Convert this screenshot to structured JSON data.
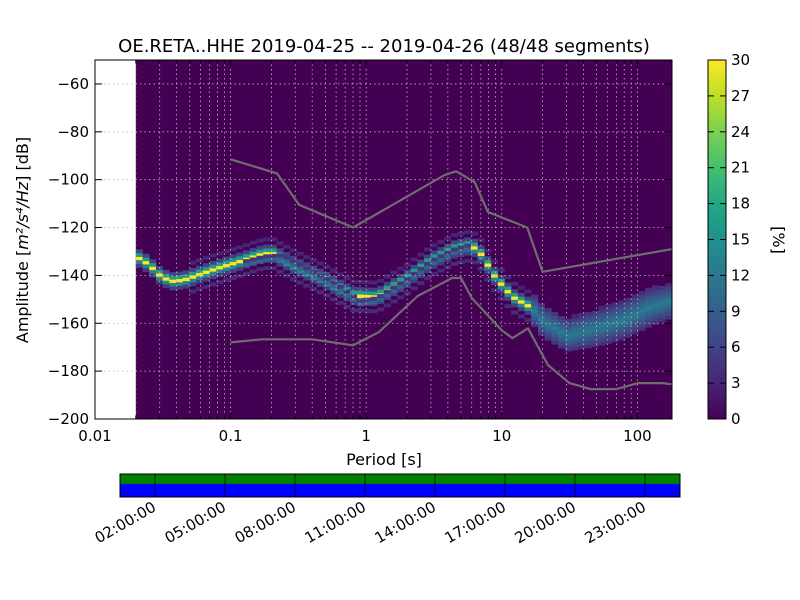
{
  "chart_data": {
    "type": "heatmap",
    "title": "OE.RETA..HHE   2019-04-25 -- 2019-04-26  (48/48 segments)",
    "xlabel": "Period [s]",
    "ylabel_prefix": "Amplitude [",
    "ylabel_math": "m²/s⁴/Hz",
    "ylabel_suffix": "] [dB]",
    "xscale": "log",
    "xlim": [
      0.01,
      180
    ],
    "ylim": [
      -200,
      -50
    ],
    "x_ticks": [
      {
        "value": 0.01,
        "label": "0.01"
      },
      {
        "value": 0.1,
        "label": "0.1"
      },
      {
        "value": 1,
        "label": "1"
      },
      {
        "value": 10,
        "label": "10"
      },
      {
        "value": 100,
        "label": "100"
      }
    ],
    "y_ticks": [
      {
        "value": -60,
        "label": "−60"
      },
      {
        "value": -80,
        "label": "−80"
      },
      {
        "value": -100,
        "label": "−100"
      },
      {
        "value": -120,
        "label": "−120"
      },
      {
        "value": -140,
        "label": "−140"
      },
      {
        "value": -160,
        "label": "−160"
      },
      {
        "value": -180,
        "label": "−180"
      },
      {
        "value": -200,
        "label": "−200"
      }
    ],
    "grid": true,
    "data_start_period": 0.02,
    "colorbar": {
      "label": "[%]",
      "range": [
        0,
        30
      ],
      "colormap": "viridis",
      "ticks": [
        "30",
        "27",
        "24",
        "21",
        "18",
        "15",
        "12",
        "9",
        "6",
        "3",
        "0"
      ],
      "tick_values": [
        30,
        27,
        24,
        21,
        18,
        15,
        12,
        9,
        6,
        3,
        0
      ]
    },
    "noise_model_high": [
      [
        0.1,
        -91.5
      ],
      [
        0.22,
        -97.4
      ],
      [
        0.32,
        -110.5
      ],
      [
        0.8,
        -120
      ],
      [
        3.8,
        -98
      ],
      [
        4.6,
        -96.5
      ],
      [
        6.3,
        -101
      ],
      [
        7.9,
        -113.5
      ],
      [
        15.4,
        -120
      ],
      [
        20,
        -138.5
      ],
      [
        180,
        -129
      ]
    ],
    "noise_model_low": [
      [
        0.1,
        -168
      ],
      [
        0.17,
        -166.7
      ],
      [
        0.4,
        -166.7
      ],
      [
        0.8,
        -169.2
      ],
      [
        1.24,
        -163.7
      ],
      [
        2.4,
        -148.6
      ],
      [
        4.3,
        -141.1
      ],
      [
        5.0,
        -141.1
      ],
      [
        6.0,
        -149.4
      ],
      [
        10,
        -163
      ],
      [
        12,
        -166.2
      ],
      [
        15.6,
        -162.1
      ],
      [
        21.9,
        -177.5
      ],
      [
        31.6,
        -185
      ],
      [
        45,
        -187.5
      ],
      [
        70,
        -187.5
      ],
      [
        101,
        -185
      ],
      [
        154,
        -185
      ],
      [
        180,
        -185.5
      ]
    ],
    "mode_curve": [
      [
        0.02,
        -132
      ],
      [
        0.025,
        -135.5
      ],
      [
        0.03,
        -140
      ],
      [
        0.036,
        -142.5
      ],
      [
        0.045,
        -142
      ],
      [
        0.06,
        -139.5
      ],
      [
        0.08,
        -137
      ],
      [
        0.12,
        -134
      ],
      [
        0.16,
        -131.5
      ],
      [
        0.2,
        -130.5
      ],
      [
        0.3,
        -136
      ],
      [
        0.5,
        -142
      ],
      [
        0.8,
        -148.5
      ],
      [
        1.2,
        -149
      ],
      [
        2,
        -141.5
      ],
      [
        3,
        -134
      ],
      [
        4.5,
        -129
      ],
      [
        6,
        -127.5
      ],
      [
        7,
        -131
      ],
      [
        9,
        -141
      ],
      [
        12,
        -149
      ],
      [
        16,
        -153
      ],
      [
        20,
        -157
      ]
    ],
    "high_noise_branch": [
      [
        0.12,
        -136
      ],
      [
        0.18,
        -133.5
      ],
      [
        0.24,
        -133
      ],
      [
        0.35,
        -138
      ],
      [
        0.6,
        -145
      ],
      [
        0.9,
        -152
      ],
      [
        1.2,
        -151
      ],
      [
        2,
        -143
      ],
      [
        3,
        -135.5
      ],
      [
        4.5,
        -130.5
      ],
      [
        6,
        -128.5
      ]
    ],
    "spread_region": [
      [
        16,
        -150
      ],
      [
        20,
        -157
      ],
      [
        30,
        -163
      ],
      [
        50,
        -159
      ],
      [
        80,
        -155
      ],
      [
        120,
        -150
      ],
      [
        180,
        -148
      ]
    ],
    "spread_region_low": [
      [
        16,
        -154
      ],
      [
        20,
        -161
      ],
      [
        30,
        -167
      ],
      [
        50,
        -165
      ],
      [
        80,
        -162
      ],
      [
        120,
        -157
      ],
      [
        180,
        -153
      ]
    ],
    "time_axis": {
      "tick_labels": [
        "02:00:00",
        "05:00:00",
        "08:00:00",
        "11:00:00",
        "14:00:00",
        "17:00:00",
        "20:00:00",
        "23:00:00"
      ],
      "tick_hours": [
        2,
        5,
        8,
        11,
        14,
        17,
        20,
        23
      ],
      "start_hour": 0.5,
      "end_hour": 24.5,
      "colors": {
        "top_band": "#008000",
        "bottom_band": "#0000ff"
      }
    }
  }
}
